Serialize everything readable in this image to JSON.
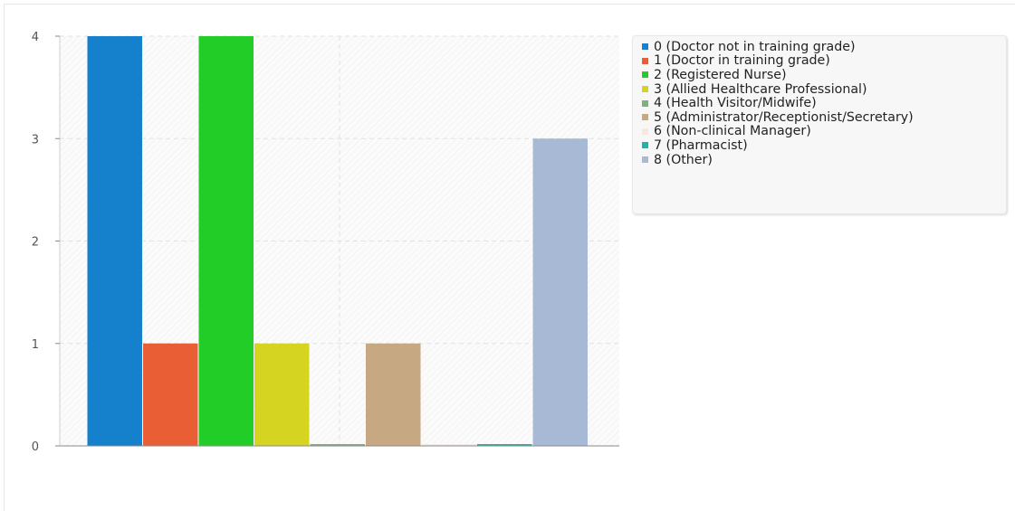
{
  "chart_data": {
    "type": "bar",
    "categories": [
      "0 (Doctor not in training grade)",
      "1 (Doctor in training grade)",
      "2 (Registered Nurse)",
      "3 (Allied Healthcare Professional)",
      "4 (Health Visitor/Midwife)",
      "5 (Administrator/Receptionist/Secretary)",
      "6 (Non-clinical Manager)",
      "7 (Pharmacist)",
      "8 (Other)"
    ],
    "values": [
      4,
      1,
      4,
      1,
      0,
      1,
      0,
      0,
      3
    ],
    "colors": [
      "#1580cb",
      "#e95e35",
      "#22cd28",
      "#d5d521",
      "#7db17d",
      "#c6a882",
      "#f7e8e2",
      "#1ab6ab",
      "#a8b9d6"
    ],
    "ylim": [
      0,
      4
    ],
    "yticks": [
      0,
      1,
      2,
      3,
      4
    ],
    "yticks_labels": [
      "0",
      "1",
      "2",
      "3",
      "4"
    ],
    "title": "",
    "xlabel": "",
    "ylabel": "",
    "grid": true,
    "legend_position": "right"
  }
}
